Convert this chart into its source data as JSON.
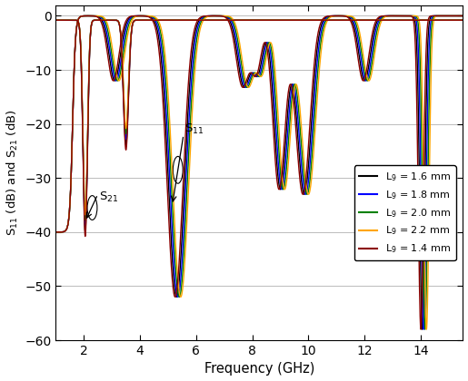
{
  "xlabel": "Frequency (GHz)",
  "ylabel": "S$_{11}$ (dB) and S$_{21}$ (dB)",
  "xlim": [
    1,
    15.5
  ],
  "ylim": [
    -60,
    2
  ],
  "xticks": [
    2,
    4,
    6,
    8,
    10,
    12,
    14
  ],
  "yticks": [
    0,
    -10,
    -20,
    -30,
    -40,
    -50,
    -60
  ],
  "variants": [
    {
      "label": "L$_9$ = 1.6 mm",
      "color": "#000000",
      "s21_amp_dip1": -39,
      "s21_amp_dip2": -23,
      "s11_fshift": 0.0,
      "s11_scale": 1.0
    },
    {
      "label": "L$_9$ = 1.8 mm",
      "color": "#0000FF",
      "s21_amp_dip1": -38,
      "s21_amp_dip2": -22,
      "s11_fshift": 0.05,
      "s11_scale": 1.0
    },
    {
      "label": "L$_9$ = 2.0 mm",
      "color": "#008000",
      "s21_amp_dip1": -37,
      "s21_amp_dip2": -21,
      "s11_fshift": 0.1,
      "s11_scale": 1.0
    },
    {
      "label": "L$_9$ = 2.2 mm",
      "color": "#FFA500",
      "s21_amp_dip1": -36,
      "s21_amp_dip2": -20,
      "s11_fshift": 0.15,
      "s11_scale": 1.0
    },
    {
      "label": "L$_9$ = 1.4 mm",
      "color": "#8B0000",
      "s21_amp_dip1": -40,
      "s21_amp_dip2": -24,
      "s11_fshift": -0.05,
      "s11_scale": 1.0
    }
  ],
  "background_color": "#FFFFFF",
  "grid_color": "#BBBBBB"
}
